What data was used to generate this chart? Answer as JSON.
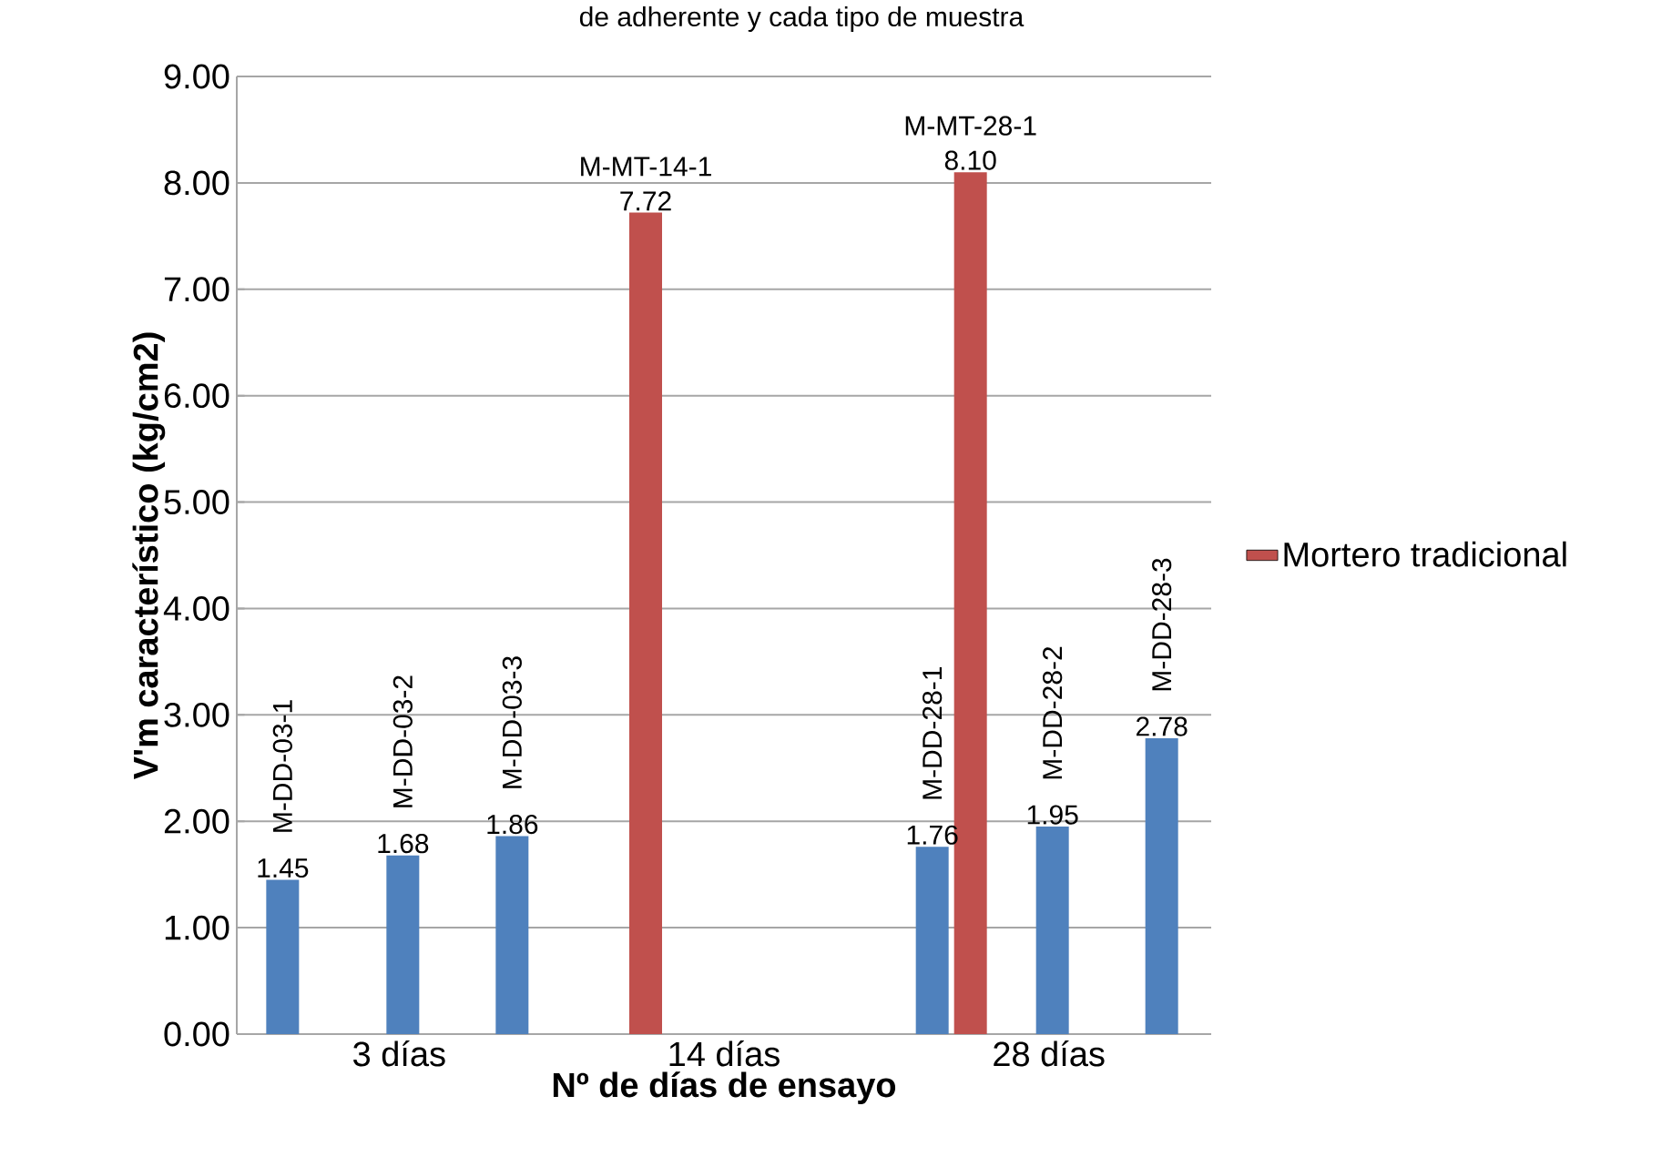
{
  "chart_data": {
    "type": "bar",
    "title": "de adherente y cada tipo de muestra",
    "xlabel": "Nº de días de ensayo",
    "ylabel": "V'm característico (kg/cm2)",
    "categories": [
      "3 días",
      "14 días",
      "28 días"
    ],
    "series": [
      {
        "color": "#4f81bd",
        "values": [
          1.45,
          null,
          1.76
        ],
        "value_labels": [
          "1.45",
          null,
          "1.76"
        ]
      },
      {
        "name": "Mortero tradicional",
        "color": "#c0504d",
        "values": [
          null,
          7.72,
          8.1
        ],
        "value_labels": [
          null,
          "7.72",
          "8.10"
        ]
      },
      {
        "color": "#4f81bd",
        "values": [
          1.68,
          null,
          1.95
        ],
        "value_labels": [
          "1.68",
          null,
          "1.95"
        ]
      },
      {
        "color": "#4f81bd",
        "values": [
          1.86,
          null,
          2.78
        ],
        "value_labels": [
          "1.86",
          null,
          "2.78"
        ]
      }
    ],
    "annotations": [
      "M-DD-03-1",
      "M-DD-03-2",
      "M-DD-03-3",
      "M-MT-14-1",
      "M-DD-28-1",
      "M-MT-28-1",
      "M-DD-28-2",
      "M-DD-28-3"
    ],
    "ylim": [
      0,
      9
    ],
    "yticks": [
      {
        "value": 0,
        "label": "0.00"
      },
      {
        "value": 1,
        "label": "1.00"
      },
      {
        "value": 2,
        "label": "2.00"
      },
      {
        "value": 3,
        "label": "3.00"
      },
      {
        "value": 4,
        "label": "4.00"
      },
      {
        "value": 5,
        "label": "5.00"
      },
      {
        "value": 6,
        "label": "6.00"
      },
      {
        "value": 7,
        "label": "7.00"
      },
      {
        "value": 8,
        "label": "8.00"
      },
      {
        "value": 9,
        "label": "9.00"
      }
    ],
    "grid": "y",
    "legend": "right"
  }
}
